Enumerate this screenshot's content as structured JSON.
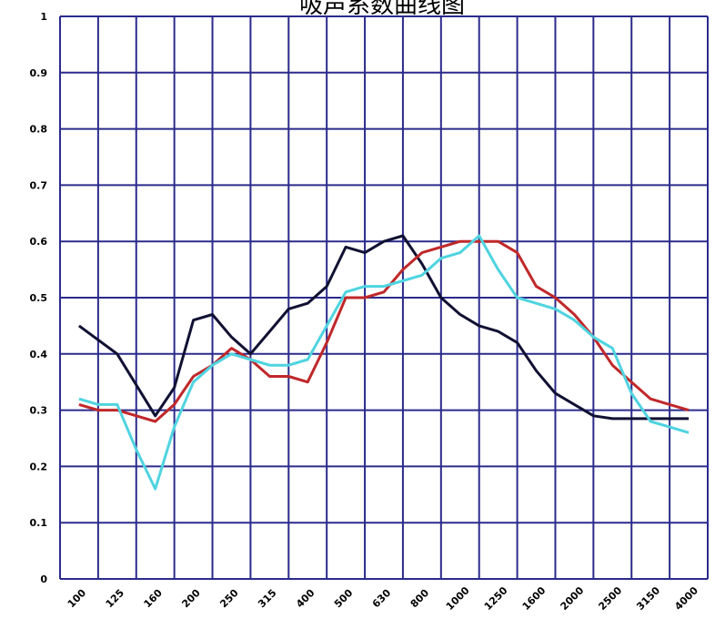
{
  "chart_data": {
    "type": "line",
    "title": "吸声系数曲线图",
    "xlabel": "",
    "ylabel": "",
    "ylim": [
      0,
      1
    ],
    "yticks": [
      "0",
      "0.1",
      "0.2",
      "0.3",
      "0.4",
      "0.5",
      "0.6",
      "0.7",
      "0.8",
      "0.9",
      "1"
    ],
    "categories": [
      "100",
      "125",
      "160",
      "200",
      "250",
      "315",
      "400",
      "500",
      "630",
      "800",
      "1000",
      "1250",
      "1600",
      "2000",
      "2500",
      "3150",
      "4000"
    ],
    "x_positions": [
      0.5,
      1,
      1.5,
      2,
      2.5,
      3,
      3.5,
      4,
      4.5,
      5,
      5.5,
      6,
      6.5,
      7,
      7.5,
      8,
      8.5,
      9,
      9.5,
      10,
      10.5,
      11,
      11.5,
      12,
      12.5,
      13,
      13.5,
      14,
      14.5,
      15,
      15.5,
      16,
      16.5
    ],
    "grid": true,
    "colors": {
      "grid": "#2b2b8c",
      "background": "#ffffff"
    },
    "series": [
      {
        "color": "#111133",
        "x": [
          0.5,
          1.5,
          2.5,
          3,
          3.5,
          4,
          4.5,
          5,
          5.5,
          6,
          6.5,
          7,
          7.5,
          8,
          8.5,
          9,
          9.5,
          10,
          10.5,
          11,
          11.5,
          12,
          12.5,
          13,
          13.5,
          14,
          14.5,
          15,
          15.5,
          16,
          16.5
        ],
        "values": [
          0.45,
          0.4,
          0.29,
          0.34,
          0.46,
          0.47,
          0.43,
          0.4,
          0.44,
          0.48,
          0.49,
          0.52,
          0.59,
          0.58,
          0.6,
          0.61,
          0.56,
          0.5,
          0.47,
          0.45,
          0.44,
          0.42,
          0.37,
          0.33,
          0.31,
          0.29,
          0.285,
          0.285,
          0.285,
          0.285,
          0.285
        ]
      },
      {
        "color": "#c0282a",
        "x": [
          0.5,
          1,
          1.5,
          2,
          2.5,
          3,
          3.5,
          4,
          4.5,
          5,
          5.5,
          6,
          6.5,
          7,
          7.5,
          8,
          8.5,
          9,
          9.5,
          10,
          10.5,
          11,
          11.5,
          12,
          12.5,
          13,
          13.5,
          14,
          14.5,
          15,
          15.5,
          16,
          16.5
        ],
        "values": [
          0.31,
          0.3,
          0.3,
          0.29,
          0.28,
          0.31,
          0.36,
          0.38,
          0.41,
          0.39,
          0.36,
          0.36,
          0.35,
          0.42,
          0.5,
          0.5,
          0.51,
          0.55,
          0.58,
          0.59,
          0.6,
          0.6,
          0.6,
          0.58,
          0.52,
          0.5,
          0.47,
          0.43,
          0.38,
          0.35,
          0.32,
          0.31,
          0.3
        ]
      },
      {
        "color": "#4fd4e0",
        "x": [
          0.5,
          1,
          1.5,
          2,
          2.5,
          3,
          3.5,
          4,
          4.5,
          5,
          5.5,
          6,
          6.5,
          7,
          7.5,
          8,
          8.5,
          9,
          9.5,
          10,
          10.5,
          11,
          11.5,
          12,
          12.5,
          13,
          13.5,
          14,
          14.5,
          15,
          15.5,
          16,
          16.5
        ],
        "values": [
          0.32,
          0.31,
          0.31,
          0.23,
          0.16,
          0.27,
          0.35,
          0.38,
          0.4,
          0.39,
          0.38,
          0.38,
          0.39,
          0.45,
          0.51,
          0.52,
          0.52,
          0.53,
          0.54,
          0.57,
          0.58,
          0.61,
          0.55,
          0.5,
          0.49,
          0.48,
          0.46,
          0.43,
          0.41,
          0.33,
          0.28,
          0.27,
          0.26
        ]
      }
    ]
  }
}
